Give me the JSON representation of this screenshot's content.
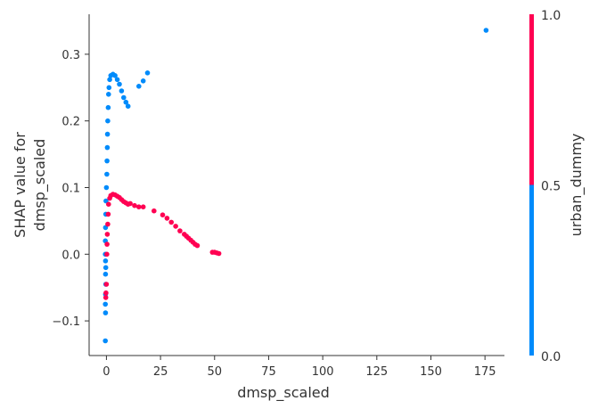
{
  "chart_data": {
    "type": "scatter",
    "xlabel": "dmsp_scaled",
    "ylabel_lines": [
      "SHAP value for",
      "dmsp_scaled"
    ],
    "colorbar_label": "urban_dummy",
    "xlim": [
      -8,
      184
    ],
    "ylim": [
      -0.152,
      0.36
    ],
    "x_ticks": [
      0,
      25,
      50,
      75,
      100,
      125,
      150,
      175
    ],
    "y_ticks": [
      -0.1,
      0.0,
      0.1,
      0.2,
      0.3
    ],
    "y_tick_labels": [
      "−0.1",
      "0.0",
      "0.1",
      "0.2",
      "0.3"
    ],
    "colorbar_ticks": [
      "0.0",
      "0.5",
      "1.0"
    ],
    "colors": {
      "urban_0": "#008bfb",
      "urban_1": "#ff0052",
      "axis": "#333333"
    },
    "series": [
      {
        "name": "0",
        "color_key": "urban_0",
        "points": [
          [
            175.5,
            0.336
          ],
          [
            19.0,
            0.272
          ],
          [
            17.0,
            0.26
          ],
          [
            15.0,
            0.252
          ],
          [
            10.0,
            0.222
          ],
          [
            9.0,
            0.228
          ],
          [
            8.0,
            0.235
          ],
          [
            7.0,
            0.245
          ],
          [
            6.0,
            0.255
          ],
          [
            5.0,
            0.262
          ],
          [
            4.0,
            0.268
          ],
          [
            3.0,
            0.27
          ],
          [
            2.0,
            0.268
          ],
          [
            1.5,
            0.262
          ],
          [
            1.2,
            0.25
          ],
          [
            1.0,
            0.24
          ],
          [
            0.8,
            0.22
          ],
          [
            0.6,
            0.2
          ],
          [
            0.5,
            0.18
          ],
          [
            0.4,
            0.16
          ],
          [
            0.3,
            0.14
          ],
          [
            0.2,
            0.12
          ],
          [
            0.0,
            0.1
          ],
          [
            -0.2,
            0.08
          ],
          [
            -0.3,
            0.06
          ],
          [
            -0.4,
            0.04
          ],
          [
            -0.5,
            0.02
          ],
          [
            -0.5,
            0.0
          ],
          [
            -0.4,
            -0.01
          ],
          [
            -0.3,
            -0.02
          ],
          [
            -0.4,
            -0.03
          ],
          [
            -0.3,
            -0.045
          ],
          [
            -0.4,
            -0.06
          ],
          [
            -0.5,
            -0.075
          ],
          [
            -0.4,
            -0.088
          ],
          [
            -0.5,
            -0.13
          ]
        ]
      },
      {
        "name": "1",
        "color_key": "urban_1",
        "points": [
          [
            52.0,
            0.001
          ],
          [
            51.0,
            0.002
          ],
          [
            50.0,
            0.003
          ],
          [
            49.0,
            0.003
          ],
          [
            42.0,
            0.013
          ],
          [
            41.0,
            0.015
          ],
          [
            40.0,
            0.018
          ],
          [
            39.0,
            0.021
          ],
          [
            38.0,
            0.024
          ],
          [
            37.0,
            0.027
          ],
          [
            36.0,
            0.03
          ],
          [
            34.0,
            0.035
          ],
          [
            32.0,
            0.042
          ],
          [
            30.0,
            0.048
          ],
          [
            28.0,
            0.054
          ],
          [
            26.0,
            0.059
          ],
          [
            22.0,
            0.065
          ],
          [
            17.0,
            0.071
          ],
          [
            15.0,
            0.071
          ],
          [
            13.0,
            0.073
          ],
          [
            11.0,
            0.076
          ],
          [
            10.0,
            0.075
          ],
          [
            9.0,
            0.077
          ],
          [
            8.0,
            0.079
          ],
          [
            7.0,
            0.082
          ],
          [
            6.0,
            0.085
          ],
          [
            5.0,
            0.087
          ],
          [
            4.0,
            0.089
          ],
          [
            3.0,
            0.09
          ],
          [
            2.0,
            0.088
          ],
          [
            1.5,
            0.084
          ],
          [
            1.0,
            0.075
          ],
          [
            0.8,
            0.06
          ],
          [
            0.6,
            0.045
          ],
          [
            0.4,
            0.03
          ],
          [
            0.3,
            0.015
          ],
          [
            0.2,
            0.0
          ],
          [
            0.0,
            -0.045
          ],
          [
            -0.2,
            -0.058
          ],
          [
            -0.3,
            -0.065
          ]
        ]
      }
    ]
  }
}
